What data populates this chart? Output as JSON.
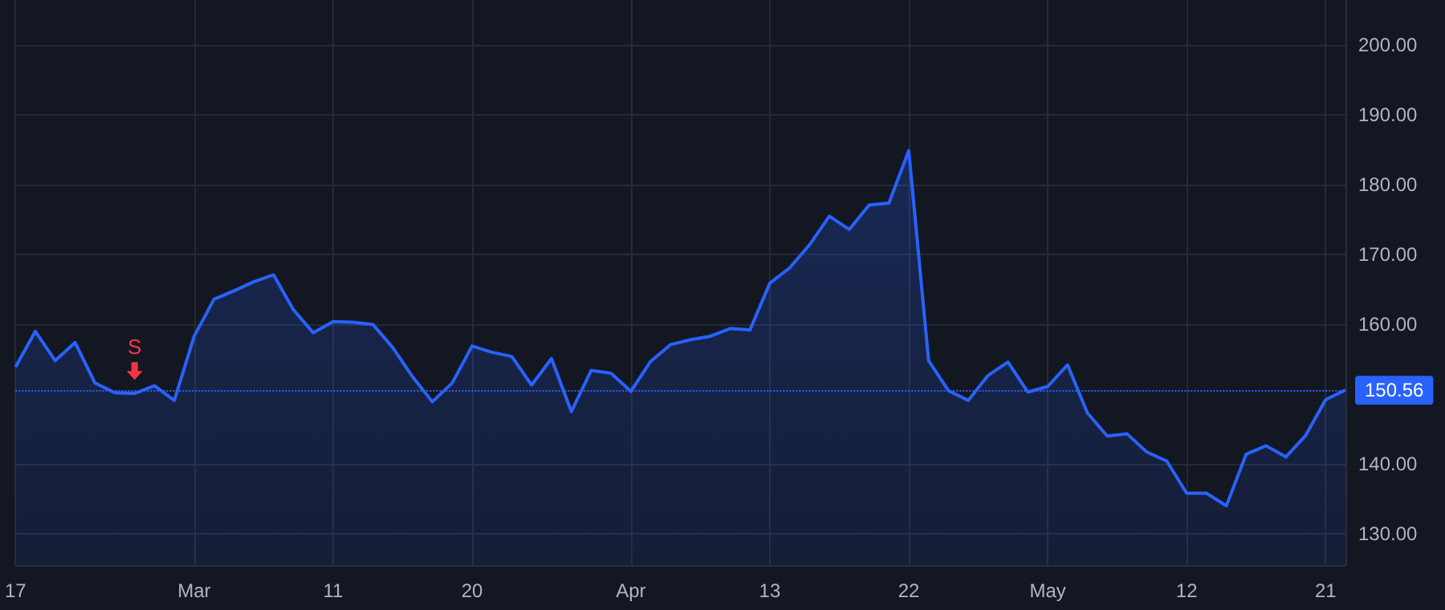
{
  "chart_data": {
    "type": "area",
    "categories": [
      "17",
      null,
      null,
      null,
      null,
      null,
      null,
      null,
      null,
      "Mar",
      null,
      null,
      null,
      null,
      null,
      null,
      "11",
      null,
      null,
      null,
      null,
      null,
      null,
      "20",
      null,
      null,
      null,
      null,
      null,
      null,
      null,
      "Apr",
      null,
      null,
      null,
      null,
      null,
      null,
      "13",
      null,
      null,
      null,
      null,
      null,
      null,
      "22",
      null,
      null,
      null,
      null,
      null,
      null,
      "May",
      null,
      null,
      null,
      null,
      null,
      null,
      "12",
      null,
      null,
      null,
      null,
      null,
      null,
      "21",
      null
    ],
    "series": [
      {
        "color": "#2962ff",
        "values": [
          153.9,
          159.0,
          154.8,
          157.4,
          151.6,
          150.2,
          150.1,
          151.2,
          149.1,
          158.3,
          163.6,
          164.8,
          166.1,
          167.1,
          162.1,
          158.8,
          160.4,
          160.3,
          160.0,
          156.7,
          152.5,
          148.9,
          151.6,
          156.9,
          156.0,
          155.4,
          151.3,
          155.1,
          147.5,
          153.4,
          153.0,
          150.4,
          154.7,
          157.1,
          157.8,
          158.3,
          159.4,
          159.2,
          165.9,
          168.1,
          171.4,
          175.5,
          173.6,
          177.1,
          177.4,
          184.9,
          154.8,
          150.5,
          149.1,
          152.7,
          154.6,
          150.3,
          151.1,
          154.2,
          147.3,
          144.0,
          144.3,
          141.7,
          140.4,
          135.8,
          135.8,
          134.0,
          141.4,
          142.6,
          141.0,
          144.1,
          149.2,
          150.6
        ]
      }
    ],
    "ylim": [
      125.5,
      206.5
    ],
    "yticks": [
      {
        "value": 130,
        "label": "130.00"
      },
      {
        "value": 140,
        "label": "140.00"
      },
      {
        "value": 160,
        "label": "160.00"
      },
      {
        "value": 170,
        "label": "170.00"
      },
      {
        "value": 180,
        "label": "180.00"
      },
      {
        "value": 190,
        "label": "190.00"
      },
      {
        "value": 200,
        "label": "200.00"
      }
    ],
    "ref_lines": [
      {
        "axis": "y",
        "value": 150.56,
        "label": "150.56",
        "color": "#2962ff",
        "line_style": "dotted"
      }
    ],
    "annotations": [
      {
        "text": "S",
        "y": 150.1
      }
    ],
    "grid": true
  }
}
